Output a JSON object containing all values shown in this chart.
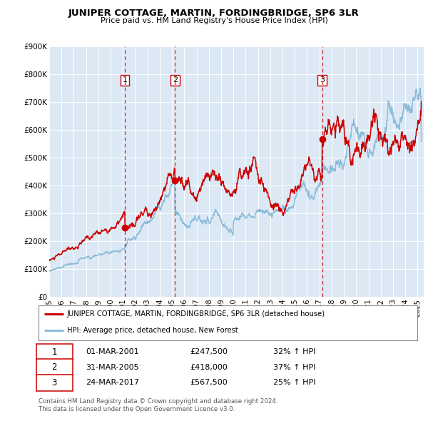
{
  "title": "JUNIPER COTTAGE, MARTIN, FORDINGBRIDGE, SP6 3LR",
  "subtitle": "Price paid vs. HM Land Registry's House Price Index (HPI)",
  "ylim": [
    0,
    900000
  ],
  "xlim_start": 1995.0,
  "xlim_end": 2025.5,
  "background_color": "#ffffff",
  "plot_bg_color": "#dce9f5",
  "grid_color": "#ffffff",
  "red_line_color": "#cc0000",
  "blue_line_color": "#8bbcda",
  "sale_marker_color": "#cc0000",
  "vline_color": "#cc0000",
  "sale_events": [
    {
      "label": "1",
      "date_num": 2001.17,
      "price": 247500
    },
    {
      "label": "2",
      "date_num": 2005.25,
      "price": 418000
    },
    {
      "label": "3",
      "date_num": 2017.23,
      "price": 567500
    }
  ],
  "legend_red_label": "JUNIPER COTTAGE, MARTIN, FORDINGBRIDGE, SP6 3LR (detached house)",
  "legend_blue_label": "HPI: Average price, detached house, New Forest",
  "table_rows": [
    {
      "num": "1",
      "date": "01-MAR-2001",
      "price": "£247,500",
      "hpi": "32% ↑ HPI"
    },
    {
      "num": "2",
      "date": "31-MAR-2005",
      "price": "£418,000",
      "hpi": "37% ↑ HPI"
    },
    {
      "num": "3",
      "date": "24-MAR-2017",
      "price": "£567,500",
      "hpi": "25% ↑ HPI"
    }
  ],
  "footnote1": "Contains HM Land Registry data © Crown copyright and database right 2024.",
  "footnote2": "This data is licensed under the Open Government Licence v3.0.",
  "yticks": [
    0,
    100000,
    200000,
    300000,
    400000,
    500000,
    600000,
    700000,
    800000,
    900000
  ],
  "ytick_labels": [
    "£0",
    "£100K",
    "£200K",
    "£300K",
    "£400K",
    "£500K",
    "£600K",
    "£700K",
    "£800K",
    "£900K"
  ]
}
